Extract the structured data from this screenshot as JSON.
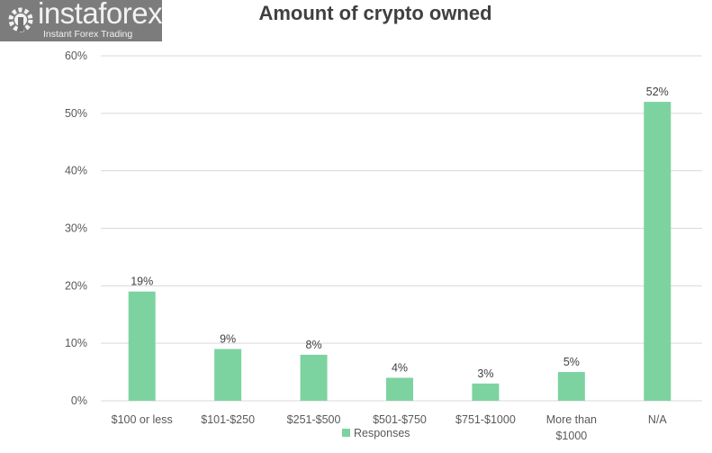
{
  "chart_data": {
    "type": "bar",
    "title": "Amount of crypto owned",
    "categories": [
      "$100 or less",
      "$101-$250",
      "$251-$500",
      "$501-$750",
      "$751-$1000",
      "More than $1000",
      "N/A"
    ],
    "category_lines": [
      [
        "$100 or less"
      ],
      [
        "$101-$250"
      ],
      [
        "$251-$500"
      ],
      [
        "$501-$750"
      ],
      [
        "$751-$1000"
      ],
      [
        "More than",
        "$1000"
      ],
      [
        "N/A"
      ]
    ],
    "series": [
      {
        "name": "Responses",
        "values": [
          19,
          9,
          8,
          4,
          3,
          5,
          52
        ],
        "color": "#7dd3a0"
      }
    ],
    "data_labels": [
      "19%",
      "9%",
      "8%",
      "4%",
      "3%",
      "5%",
      "52%"
    ],
    "ylim": [
      0,
      60
    ],
    "yticks": [
      0,
      10,
      20,
      30,
      40,
      50,
      60
    ],
    "ytick_labels": [
      "0%",
      "10%",
      "20%",
      "30%",
      "40%",
      "50%",
      "60%"
    ],
    "xlabel": "",
    "ylabel": "",
    "grid": true,
    "legend_position": "bottom"
  },
  "watermark": {
    "brand": "instaforex",
    "tagline": "Instant Forex Trading"
  }
}
